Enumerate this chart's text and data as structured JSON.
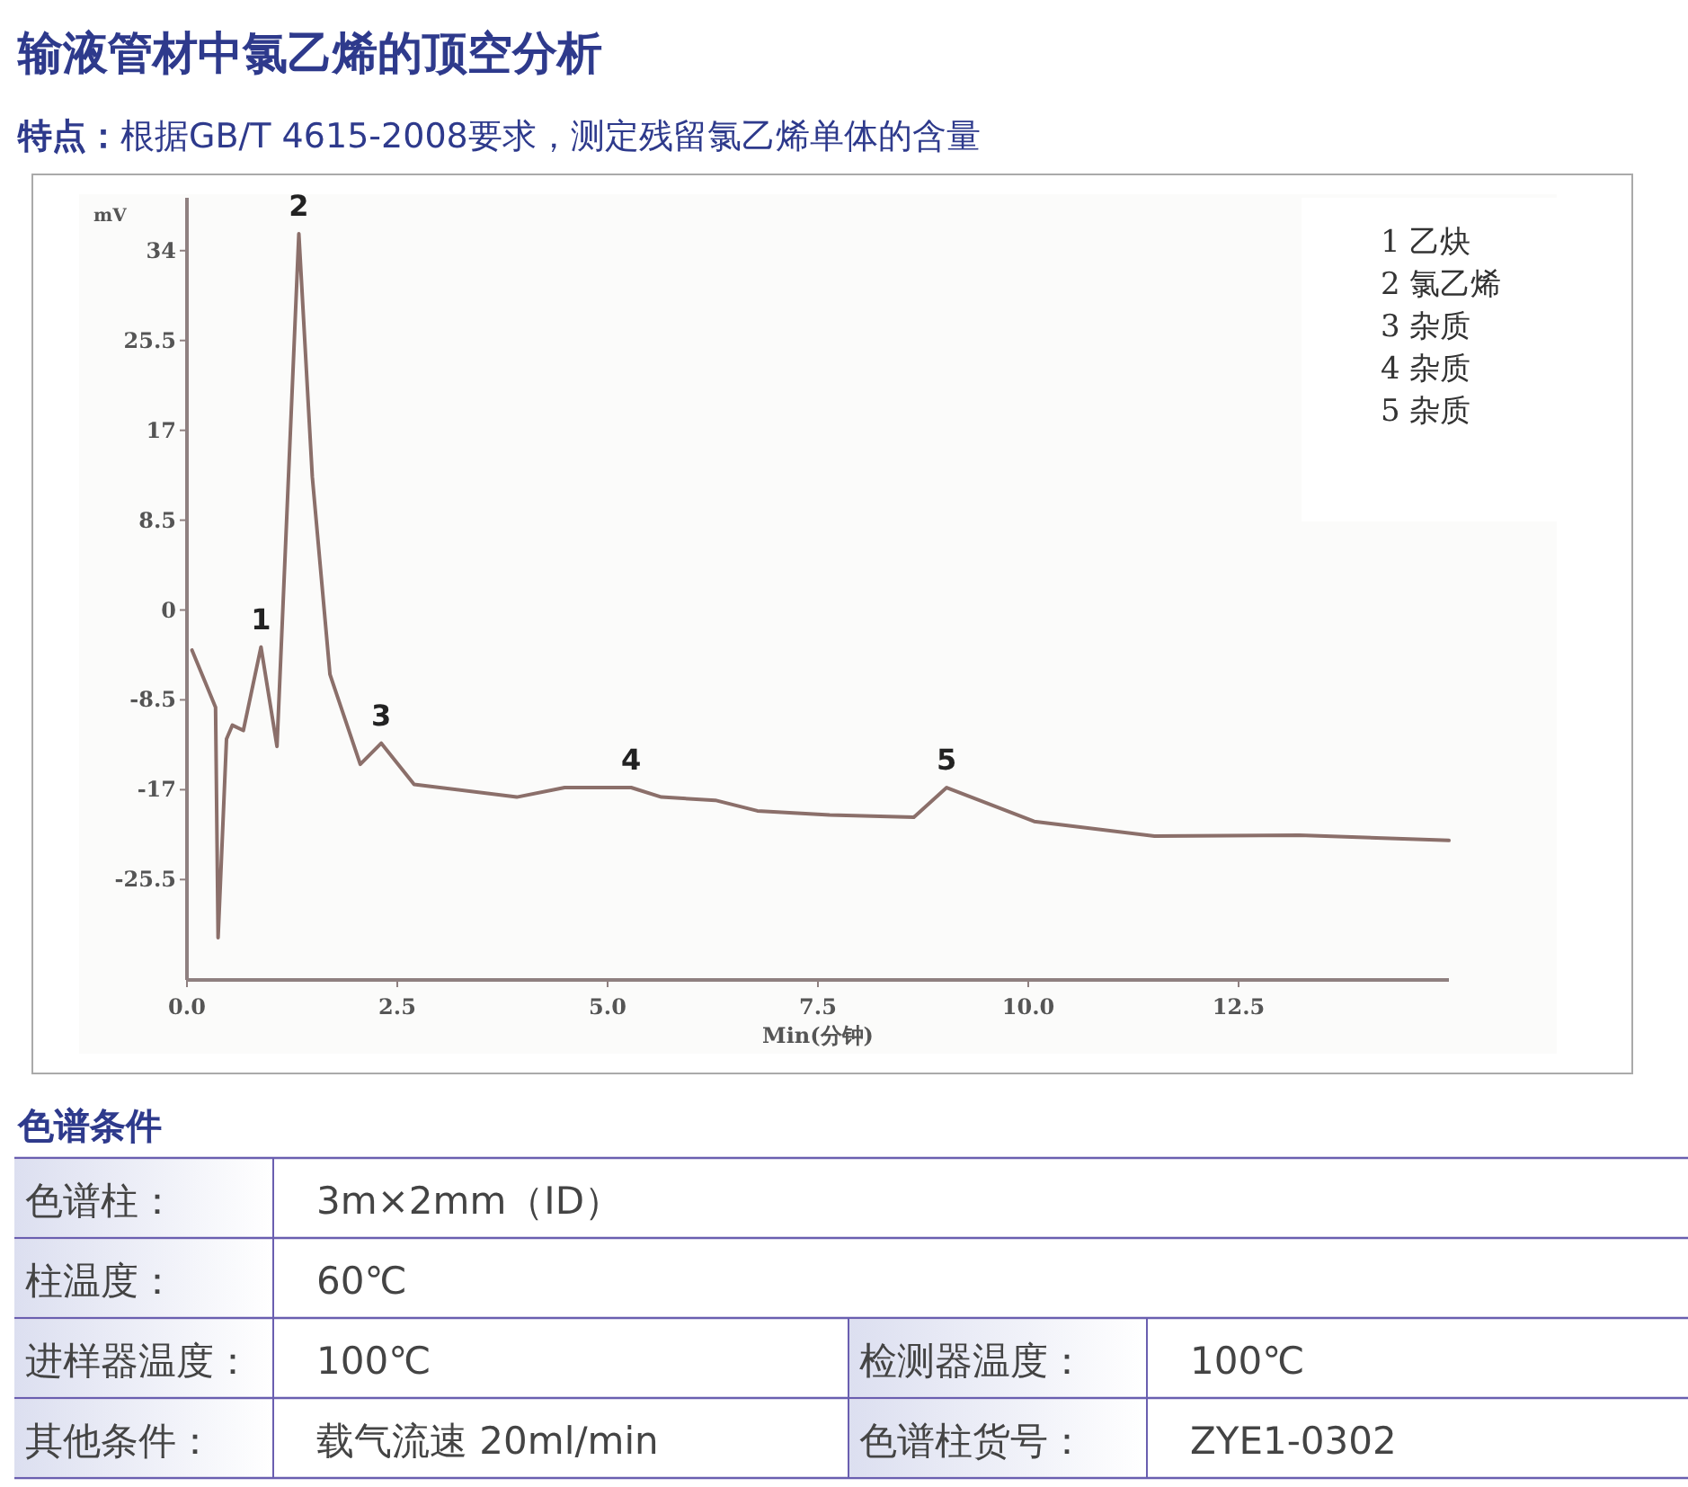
{
  "chart_data": {
    "type": "line",
    "title": "输液管材中氯乙烯的顶空分析",
    "subtitle": "**特点：**根据GB/T 4615-2008要求，测定残留氯乙烯单体的含量",
    "xlabel": "Min(分钟)",
    "ylabel": "mV",
    "x": [
      0.06,
      0.34,
      0.37,
      0.47,
      0.54,
      0.67,
      0.88,
      1.07,
      1.33,
      1.49,
      1.7,
      2.06,
      2.31,
      2.7,
      3.92,
      4.49,
      5.28,
      5.64,
      6.28,
      6.78,
      7.64,
      8.64,
      9.03,
      10.07,
      11.5,
      13.22,
      15.0
    ],
    "series": [
      {
        "color": "#8b6f6a",
        "values": [
          -3.8,
          -9.2,
          -31.0,
          -12.2,
          -10.9,
          -11.4,
          -3.5,
          -12.9,
          35.6,
          12.6,
          -6.1,
          -14.6,
          -12.6,
          -16.5,
          -17.7,
          -16.8,
          -16.8,
          -17.7,
          -18.0,
          -19.0,
          -19.4,
          -19.6,
          -16.8,
          -20.0,
          -21.4,
          -21.3,
          -21.8
        ]
      }
    ],
    "xlim": [
      0,
      15
    ],
    "ylim": [
      -35,
      39
    ],
    "xticks": [
      {
        "value": 0,
        "label": "0.0"
      },
      2.5,
      {
        "value": 5,
        "label": "5.0"
      },
      7.5,
      {
        "value": 10,
        "label": "10.0"
      },
      12.5
    ],
    "yticks": [
      -25.5,
      -17,
      -8.5,
      0,
      8.5,
      17,
      25.5,
      34
    ],
    "grid": false,
    "marker": "none",
    "line_style": "solid",
    "annotations": [
      {
        "text": "1",
        "x": 0.88,
        "y": -3.5
      },
      {
        "text": "2",
        "x": 1.33,
        "y": 35.6
      },
      {
        "text": "3",
        "x": 2.31,
        "y": -12.6
      },
      {
        "text": "4",
        "x": 5.28,
        "y": -16.8
      },
      {
        "text": "5",
        "x": 9.03,
        "y": -16.8
      },
      "1  乙炔",
      "2  氯乙烯",
      "3  杂质",
      "4  杂质",
      "5  杂质",
      "色谱条件",
      "色谱柱：",
      "3m×2mm（ID）",
      "柱温度：",
      "60℃",
      "进样器温度：",
      "100℃",
      "检测器温度：",
      "100℃",
      "其他条件：",
      "载气流速 20ml/min",
      "色谱柱货号：",
      "ZYE1-0302"
    ]
  }
}
